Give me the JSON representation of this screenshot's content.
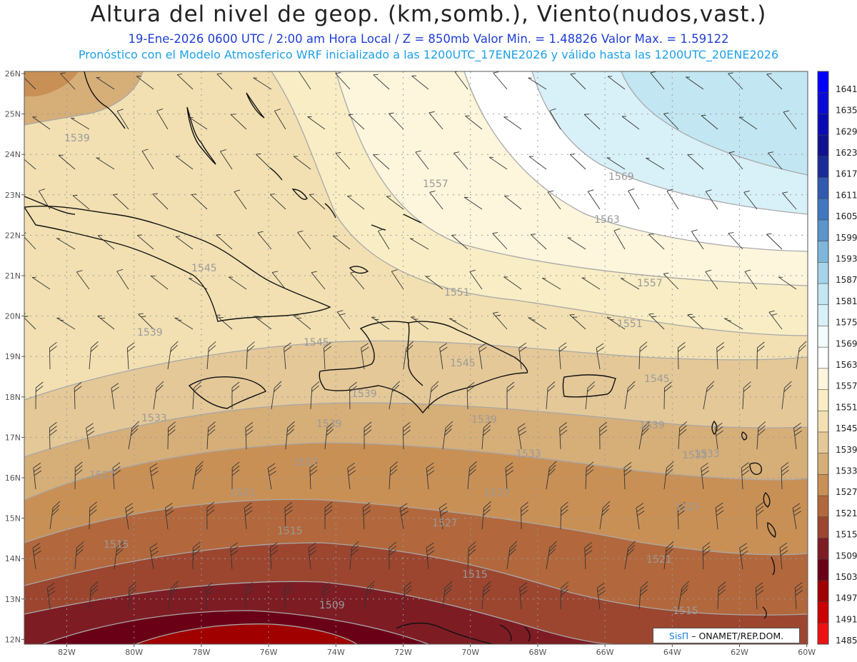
{
  "header": {
    "title": "Altura del nivel de geop. (km,somb.), Viento(nudos,vast.)",
    "line2": "19-Ene-2026  0600 UTC / 2:00 am Hora Local / Z = 850mb    Valor Min. = 1.48826  Valor Max. = 1.59122",
    "line3": "Pronóstico con el Modelo Atmosferico WRF inicializado a las 1200UTC_17ENE2026 y válido hasta las  1200UTC_20ENE2026"
  },
  "map": {
    "lat_labels": [
      "26N",
      "25N",
      "24N",
      "23N",
      "22N",
      "21N",
      "20N",
      "19N",
      "18N",
      "17N",
      "16N",
      "15N",
      "14N",
      "13N",
      "12N"
    ],
    "lon_labels": [
      "82W",
      "80W",
      "78W",
      "76W",
      "74W",
      "72W",
      "70W",
      "68W",
      "66W",
      "64W",
      "62W",
      "60W"
    ],
    "contour_labels": [
      "1539",
      "1545",
      "1557",
      "1569",
      "1563",
      "1545",
      "1551",
      "1557",
      "1551",
      "1539",
      "1545",
      "1545",
      "1539",
      "1533",
      "1533",
      "1539",
      "1539",
      "1539",
      "1533",
      "1527",
      "1527",
      "1527",
      "1533",
      "1521",
      "1527",
      "1527",
      "1515",
      "1515",
      "1521",
      "1509",
      "1515",
      "1521",
      "1515"
    ]
  },
  "colorbar": {
    "levels": [
      "1641",
      "1635",
      "1629",
      "1623",
      "1617",
      "1611",
      "1605",
      "1599",
      "1593",
      "1587",
      "1581",
      "1575",
      "1569",
      "1563",
      "1557",
      "1551",
      "1545",
      "1539",
      "1533",
      "1527",
      "1521",
      "1515",
      "1509",
      "1503",
      "1497",
      "1491",
      "1485"
    ],
    "colors": [
      "#0000ff",
      "#0a0ad8",
      "#0a0ab4",
      "#101090",
      "#1a2a98",
      "#2f5ab0",
      "#3f78c0",
      "#5a95cc",
      "#7fb6db",
      "#a6d4ea",
      "#c2e6f2",
      "#d8f0f8",
      "#f3fbfd",
      "#ffffff",
      "#fdf5dc",
      "#f8edc4",
      "#f2e0b2",
      "#e4c898",
      "#d6ae78",
      "#c99056",
      "#b2683c",
      "#9c4630",
      "#7e1c24",
      "#6a0016",
      "#a00000",
      "#cc0000",
      "#ee1111"
    ]
  },
  "credit": {
    "logo": "SisΠ",
    "text": "– ONAMET/REP.DOM."
  }
}
